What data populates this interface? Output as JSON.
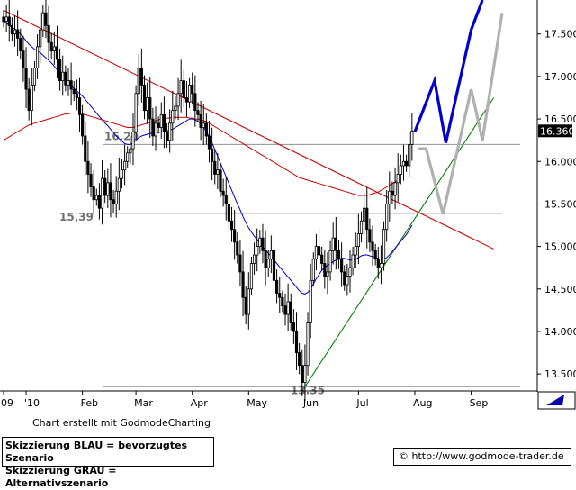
{
  "chart_data": {
    "type": "candlestick",
    "title": "",
    "ylim": [
      13.3,
      17.9
    ],
    "yticks": [
      13.5,
      14.0,
      14.5,
      15.0,
      15.5,
      16.0,
      16.5,
      17.0,
      17.5
    ],
    "ytick_labels": [
      "13.500",
      "14.000",
      "14.500",
      "15.000",
      "15.500",
      "16.000",
      "16.500",
      "17.000",
      "17.500"
    ],
    "xlabels": [
      "'09",
      "'10",
      "Feb",
      "Mar",
      "Apr",
      "May",
      "Jun",
      "Jul",
      "Aug",
      "Sep"
    ],
    "xlabel_index": [
      0,
      8,
      28,
      47,
      67,
      87,
      107,
      126,
      146,
      166
    ],
    "last_price_label": "16.360",
    "last_price": 16.36,
    "levels": [
      {
        "label": "16,20",
        "value": 16.2,
        "color": "#707070"
      },
      {
        "label": "15,39",
        "value": 15.39,
        "color": "#707070"
      },
      {
        "label": "13.35",
        "value": 13.35,
        "color": "#707070"
      }
    ],
    "closes": [
      17.65,
      17.7,
      17.6,
      17.5,
      17.55,
      17.45,
      17.3,
      17.1,
      16.85,
      16.6,
      16.9,
      17.1,
      17.35,
      17.55,
      17.75,
      17.6,
      17.4,
      17.3,
      17.35,
      17.2,
      16.95,
      17.05,
      16.9,
      16.95,
      16.85,
      16.8,
      16.75,
      16.55,
      16.3,
      16.0,
      15.85,
      15.7,
      15.55,
      15.6,
      15.45,
      15.8,
      15.6,
      15.75,
      15.55,
      15.5,
      15.65,
      15.8,
      15.9,
      16.0,
      16.1,
      16.15,
      16.35,
      16.8,
      17.1,
      16.9,
      16.6,
      16.75,
      16.5,
      16.3,
      16.45,
      16.4,
      16.55,
      16.35,
      16.25,
      16.45,
      16.6,
      16.65,
      16.8,
      16.95,
      16.75,
      16.7,
      16.9,
      16.8,
      16.6,
      16.55,
      16.4,
      16.45,
      16.3,
      16.15,
      16.0,
      15.85,
      15.9,
      15.65,
      15.6,
      15.5,
      15.3,
      15.2,
      15.05,
      14.9,
      14.7,
      14.4,
      14.2,
      14.5,
      14.8,
      14.9,
      15.0,
      15.1,
      14.95,
      14.75,
      14.85,
      14.95,
      14.6,
      14.45,
      14.4,
      14.3,
      14.2,
      14.35,
      14.1,
      14.0,
      13.75,
      13.6,
      13.4,
      13.6,
      14.1,
      14.6,
      14.85,
      15.0,
      14.9,
      14.8,
      14.65,
      14.7,
      14.95,
      15.1,
      14.95,
      14.85,
      14.7,
      14.55,
      14.65,
      14.75,
      14.9,
      15.0,
      15.15,
      15.3,
      15.45,
      15.2,
      15.05,
      14.95,
      14.85,
      14.75,
      14.8,
      15.2,
      15.5,
      15.65,
      15.6,
      15.75,
      15.85,
      15.95,
      16.0,
      15.95,
      16.2,
      16.36
    ],
    "series": [
      {
        "name": "",
        "color": "#0000cc",
        "values": [
          17.65,
          17.63,
          17.6,
          17.58,
          17.56,
          17.53,
          17.5,
          17.46,
          17.42,
          17.38,
          17.35,
          17.32,
          17.3,
          17.28,
          17.25,
          17.22,
          17.19,
          17.16,
          17.12,
          17.08,
          17.04,
          17.0,
          16.96,
          16.92,
          16.89,
          16.86,
          16.83,
          16.8,
          16.77,
          16.73,
          16.69,
          16.65,
          16.61,
          16.57,
          16.53,
          16.49,
          16.45,
          16.42,
          16.38,
          16.34,
          16.3,
          16.27,
          16.24,
          16.21,
          16.2,
          16.2,
          16.22,
          16.25,
          16.28,
          16.3,
          16.31,
          16.32,
          16.33,
          16.33,
          16.34,
          16.34,
          16.35,
          16.35,
          16.36,
          16.37,
          16.38,
          16.4,
          16.42,
          16.44,
          16.46,
          16.48,
          16.5,
          16.5,
          16.49,
          16.47,
          16.44,
          16.4,
          16.35,
          16.29,
          16.22,
          16.14,
          16.06,
          15.98,
          15.9,
          15.82,
          15.74,
          15.66,
          15.58,
          15.5,
          15.43,
          15.35,
          15.28,
          15.22,
          15.17,
          15.12,
          15.08,
          15.04,
          15.0,
          14.96,
          14.92,
          14.88,
          14.84,
          14.8,
          14.76,
          14.72,
          14.68,
          14.64,
          14.6,
          14.56,
          14.52,
          14.48,
          14.45,
          14.44,
          14.46,
          14.5,
          14.56,
          14.62,
          14.67,
          14.72,
          14.75,
          14.78,
          14.8,
          14.82,
          14.84,
          14.85,
          14.86,
          14.86,
          14.85,
          14.84,
          14.84,
          14.85,
          14.87,
          14.89,
          14.9,
          14.9,
          14.89,
          14.88,
          14.87,
          14.86,
          14.85,
          14.85,
          14.87,
          14.9,
          14.94,
          14.98,
          15.02,
          15.06,
          15.1,
          15.14,
          15.19,
          15.25
        ]
      },
      {
        "name": "",
        "color": "#cc0000",
        "values": [
          16.25,
          16.27,
          16.29,
          16.31,
          16.33,
          16.35,
          16.37,
          16.39,
          16.41,
          16.43,
          16.44,
          16.45,
          16.46,
          16.47,
          16.48,
          16.49,
          16.5,
          16.51,
          16.52,
          16.53,
          16.54,
          16.55,
          16.56,
          16.56,
          16.57,
          16.57,
          16.57,
          16.57,
          16.56,
          16.55,
          16.54,
          16.53,
          16.52,
          16.51,
          16.5,
          16.49,
          16.48,
          16.47,
          16.46,
          16.45,
          16.44,
          16.43,
          16.42,
          16.41,
          16.4,
          16.4,
          16.4,
          16.41,
          16.42,
          16.43,
          16.44,
          16.45,
          16.46,
          16.47,
          16.48,
          16.49,
          16.5,
          16.5,
          16.51,
          16.51,
          16.52,
          16.52,
          16.52,
          16.52,
          16.52,
          16.52,
          16.51,
          16.51,
          16.5,
          16.5,
          16.49,
          16.48,
          16.47,
          16.45,
          16.43,
          16.41,
          16.39,
          16.37,
          16.35,
          16.33,
          16.31,
          16.29,
          16.27,
          16.25,
          16.23,
          16.21,
          16.19,
          16.17,
          16.15,
          16.13,
          16.11,
          16.09,
          16.07,
          16.05,
          16.03,
          16.01,
          15.99,
          15.97,
          15.95,
          15.93,
          15.91,
          15.89,
          15.87,
          15.85,
          15.83,
          15.81,
          15.8,
          15.79,
          15.78,
          15.77,
          15.76,
          15.75,
          15.74,
          15.73,
          15.72,
          15.71,
          15.7,
          15.69,
          15.68,
          15.67,
          15.66,
          15.65,
          15.64,
          15.63,
          15.62,
          15.61,
          15.6,
          15.6,
          15.6,
          15.6,
          15.61,
          15.62,
          15.63,
          15.64,
          15.66,
          15.68,
          15.7,
          15.72,
          15.74,
          15.76,
          15.78
        ]
      }
    ],
    "trendlines": [
      {
        "color": "#cc0000",
        "from": [
          0,
          17.78
        ],
        "to": [
          174,
          14.97
        ]
      },
      {
        "color": "#008000",
        "from": [
          107,
          13.35
        ],
        "to": [
          174,
          16.75
        ]
      }
    ],
    "scenarios": [
      {
        "name": "blau",
        "color": "#0000cc",
        "points": [
          [
            146,
            16.35
          ],
          [
            153,
            16.95
          ],
          [
            157,
            16.22
          ],
          [
            166,
            17.55
          ],
          [
            170,
            17.9
          ]
        ]
      },
      {
        "name": "grau",
        "color": "#b0b0b0",
        "points": [
          [
            147,
            16.15
          ],
          [
            150,
            16.15
          ],
          [
            156,
            15.38
          ],
          [
            166,
            16.85
          ],
          [
            170,
            16.25
          ],
          [
            177,
            17.75
          ]
        ]
      }
    ]
  },
  "footer": {
    "credit": "Chart erstellt mit GodmodeCharting",
    "legend_line1": "Skizzierung BLAU = bevorzugtes Szenario",
    "legend_line2": "Skizzierung GRAU = Alternativszenario",
    "source_copyright": "©",
    "source_url": "http://www.godmode-trader.de"
  }
}
